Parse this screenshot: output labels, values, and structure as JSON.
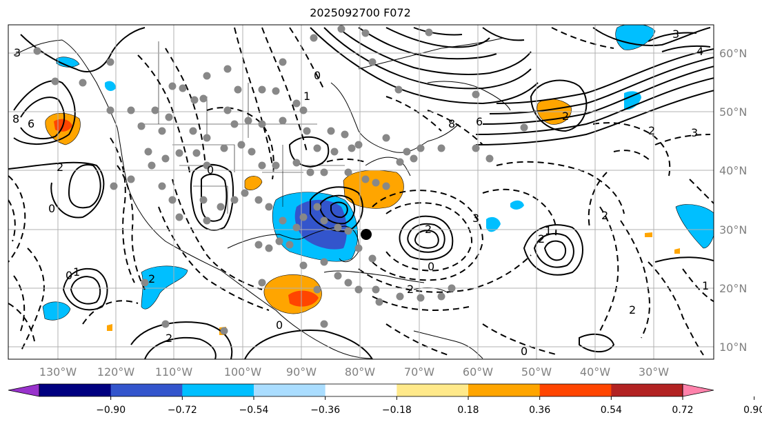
{
  "title": "2025092700 F072",
  "chart_data": {
    "type": "map",
    "lon_ticks": [
      "130°W",
      "120°W",
      "110°W",
      "100°W",
      "90°W",
      "80°W",
      "70°W",
      "60°W",
      "50°W",
      "40°W",
      "30°W"
    ],
    "lat_ticks": [
      "60°N",
      "50°N",
      "40°N",
      "30°N",
      "20°N",
      "10°N"
    ],
    "colorbar": {
      "levels": [
        "−0.90",
        "−0.72",
        "−0.54",
        "−0.36",
        "−0.18",
        "0.18",
        "0.36",
        "0.54",
        "0.72",
        "0.90"
      ],
      "colors": [
        "#9933cc",
        "#000080",
        "#3355cc",
        "#00bfff",
        "#aaddff",
        "#ffffff",
        "#ffe98a",
        "#ffa500",
        "#ff4500",
        "#b22222",
        "#ff82ab"
      ],
      "extend": "both"
    },
    "contour_labels": [
      "3",
      "2",
      "8",
      "6",
      "4",
      "0",
      "1",
      "2",
      "3",
      "8",
      "6",
      "2",
      "3",
      "2",
      "0",
      "2",
      "1",
      "2",
      "3",
      "0",
      "2",
      "0",
      "1",
      "2",
      "0",
      "1",
      "2",
      "0",
      "2",
      "0"
    ],
    "grid": true
  }
}
